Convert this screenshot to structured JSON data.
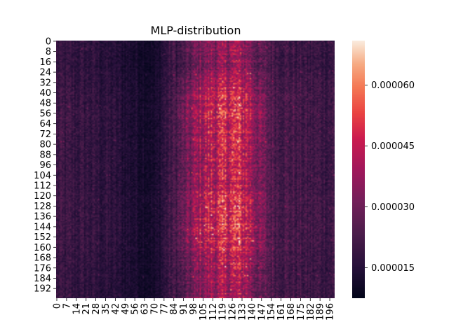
{
  "chart_data": {
    "type": "heatmap",
    "title": "MLP-distribution",
    "xlabel": "",
    "ylabel": "",
    "rows": 200,
    "cols": 200,
    "x_tick_labels": [
      "0",
      "7",
      "14",
      "21",
      "28",
      "35",
      "42",
      "49",
      "56",
      "63",
      "70",
      "77",
      "84",
      "91",
      "98",
      "105",
      "112",
      "119",
      "126",
      "133",
      "140",
      "147",
      "154",
      "161",
      "168",
      "175",
      "182",
      "189",
      "196"
    ],
    "y_tick_labels": [
      "0",
      "8",
      "16",
      "24",
      "32",
      "40",
      "48",
      "56",
      "64",
      "72",
      "80",
      "88",
      "96",
      "104",
      "112",
      "120",
      "128",
      "136",
      "144",
      "152",
      "160",
      "168",
      "176",
      "184",
      "192"
    ],
    "x_tick_step": 7,
    "y_tick_step": 8,
    "value_range": [
      7.5e-06,
      7.1e-05
    ],
    "colorbar": {
      "ticks": [
        1.5e-05,
        3e-05,
        4.5e-05,
        6e-05
      ],
      "tick_labels": [
        "0.000015",
        "0.000030",
        "0.000045",
        "0.000060"
      ],
      "colormap": "rocket"
    },
    "column_profile": [
      {
        "col": 0,
        "value": 1.9e-05
      },
      {
        "col": 20,
        "value": 1.8e-05
      },
      {
        "col": 40,
        "value": 1.6e-05
      },
      {
        "col": 55,
        "value": 1.3e-05
      },
      {
        "col": 65,
        "value": 1.2e-05
      },
      {
        "col": 70,
        "value": 1.1e-05
      },
      {
        "col": 80,
        "value": 1.9e-05
      },
      {
        "col": 90,
        "value": 2.5e-05
      },
      {
        "col": 100,
        "value": 3.5e-05
      },
      {
        "col": 110,
        "value": 4.1e-05
      },
      {
        "col": 120,
        "value": 4.3e-05
      },
      {
        "col": 130,
        "value": 4.6e-05
      },
      {
        "col": 138,
        "value": 4e-05
      },
      {
        "col": 145,
        "value": 3.1e-05
      },
      {
        "col": 155,
        "value": 2.4e-05
      },
      {
        "col": 170,
        "value": 2.1e-05
      },
      {
        "col": 185,
        "value": 2e-05
      },
      {
        "col": 199,
        "value": 2e-05
      }
    ],
    "row_profile": [
      {
        "row": 0,
        "value": 0.85
      },
      {
        "row": 20,
        "value": 0.8
      },
      {
        "row": 40,
        "value": 1.05
      },
      {
        "row": 60,
        "value": 1.1
      },
      {
        "row": 100,
        "value": 1.0
      },
      {
        "row": 130,
        "value": 1.1
      },
      {
        "row": 160,
        "value": 1.1
      },
      {
        "row": 175,
        "value": 0.95
      },
      {
        "row": 199,
        "value": 0.9
      }
    ]
  }
}
